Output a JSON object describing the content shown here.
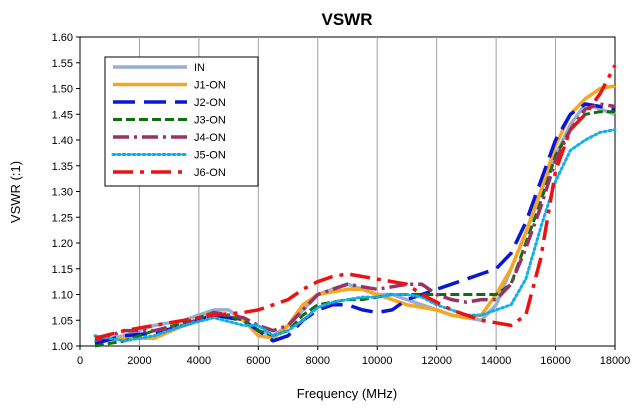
{
  "chart_data": {
    "type": "line",
    "title": "VSWR",
    "xlabel": "Frequency (MHz)",
    "ylabel": "VSWR (:1)",
    "xlim": [
      0,
      18000
    ],
    "ylim": [
      1.0,
      1.6
    ],
    "x_ticks": [
      0,
      2000,
      4000,
      6000,
      8000,
      10000,
      12000,
      14000,
      16000,
      18000
    ],
    "x_tick_labels": [
      "0",
      "2000",
      "4000",
      "6000",
      "8000",
      "10000",
      "12000",
      "14000",
      "16000",
      "18000"
    ],
    "y_ticks": [
      1.0,
      1.05,
      1.1,
      1.15,
      1.2,
      1.25,
      1.3,
      1.35,
      1.4,
      1.45,
      1.5,
      1.55,
      1.6
    ],
    "y_tick_labels": [
      "1.00",
      "1.05",
      "1.10",
      "1.15",
      "1.20",
      "1.25",
      "1.30",
      "1.35",
      "1.40",
      "1.45",
      "1.50",
      "1.55",
      "1.60"
    ],
    "grid": "vertical",
    "legend_position": "top-left",
    "series": [
      {
        "name": "IN",
        "color": "#9aaed0",
        "dash": "solid",
        "x": [
          500,
          1500,
          2500,
          3500,
          4500,
          5000,
          5500,
          6000,
          6500,
          7000,
          7500,
          8000,
          8500,
          9000,
          9500,
          10000,
          10500,
          11000,
          11500,
          12000,
          12500,
          13000,
          13500,
          14000,
          14500,
          15000,
          15500,
          16000,
          16500,
          17000,
          17500,
          18000
        ],
        "y": [
          1.01,
          1.02,
          1.04,
          1.05,
          1.07,
          1.07,
          1.05,
          1.03,
          1.02,
          1.04,
          1.07,
          1.1,
          1.11,
          1.12,
          1.11,
          1.1,
          1.1,
          1.09,
          1.08,
          1.07,
          1.06,
          1.055,
          1.05,
          1.08,
          1.15,
          1.22,
          1.3,
          1.37,
          1.43,
          1.47,
          1.46,
          1.45
        ]
      },
      {
        "name": "J1-ON",
        "color": "#f5a623",
        "dash": "solid",
        "x": [
          500,
          1500,
          2500,
          3500,
          4500,
          5500,
          6000,
          6500,
          7000,
          7500,
          8000,
          8500,
          9000,
          9500,
          10000,
          10500,
          11000,
          11500,
          12000,
          12500,
          13000,
          13500,
          14000,
          14500,
          15000,
          15500,
          16000,
          16500,
          17000,
          17500,
          18000
        ],
        "y": [
          1.01,
          1.015,
          1.015,
          1.04,
          1.065,
          1.05,
          1.02,
          1.015,
          1.04,
          1.08,
          1.1,
          1.105,
          1.11,
          1.11,
          1.1,
          1.09,
          1.08,
          1.075,
          1.07,
          1.06,
          1.055,
          1.06,
          1.1,
          1.15,
          1.22,
          1.3,
          1.39,
          1.45,
          1.48,
          1.5,
          1.505
        ]
      },
      {
        "name": "J2-ON",
        "color": "#0a16d6",
        "dash": "longdash",
        "x": [
          500,
          1500,
          2500,
          3500,
          4500,
          5500,
          6000,
          6500,
          7000,
          7500,
          8000,
          8500,
          9000,
          9500,
          10000,
          10500,
          11000,
          11500,
          12000,
          12500,
          13000,
          13500,
          14000,
          14500,
          15000,
          15500,
          16000,
          16500,
          17000,
          17500,
          18000
        ],
        "y": [
          1.005,
          1.02,
          1.025,
          1.04,
          1.06,
          1.05,
          1.03,
          1.01,
          1.02,
          1.05,
          1.07,
          1.08,
          1.08,
          1.07,
          1.065,
          1.07,
          1.09,
          1.1,
          1.11,
          1.12,
          1.13,
          1.14,
          1.15,
          1.18,
          1.24,
          1.32,
          1.4,
          1.45,
          1.47,
          1.465,
          1.46
        ]
      },
      {
        "name": "J3-ON",
        "color": "#0f6e0f",
        "dash": "dash",
        "x": [
          500,
          1500,
          2500,
          3500,
          4500,
          5500,
          6000,
          6500,
          7000,
          7500,
          8000,
          8500,
          9000,
          9500,
          10000,
          10500,
          11000,
          11500,
          12000,
          12500,
          13000,
          13500,
          14000,
          14500,
          15000,
          15500,
          16000,
          16500,
          17000,
          17500,
          18000
        ],
        "y": [
          1.0,
          1.01,
          1.03,
          1.045,
          1.065,
          1.05,
          1.03,
          1.02,
          1.03,
          1.06,
          1.08,
          1.085,
          1.09,
          1.09,
          1.095,
          1.1,
          1.1,
          1.1,
          1.1,
          1.1,
          1.1,
          1.1,
          1.1,
          1.12,
          1.2,
          1.28,
          1.37,
          1.42,
          1.45,
          1.455,
          1.455
        ]
      },
      {
        "name": "J4-ON",
        "color": "#993366",
        "dash": "dashdot",
        "x": [
          500,
          1500,
          2500,
          3500,
          4500,
          5500,
          6000,
          6500,
          7000,
          7500,
          8000,
          8500,
          9000,
          9500,
          10000,
          10500,
          11000,
          11500,
          12000,
          12500,
          13000,
          13500,
          14000,
          14500,
          15000,
          15500,
          16000,
          16500,
          17000,
          17500,
          18000
        ],
        "y": [
          1.01,
          1.03,
          1.03,
          1.04,
          1.065,
          1.055,
          1.04,
          1.03,
          1.04,
          1.07,
          1.1,
          1.11,
          1.12,
          1.115,
          1.11,
          1.115,
          1.12,
          1.12,
          1.1,
          1.09,
          1.085,
          1.09,
          1.09,
          1.12,
          1.19,
          1.27,
          1.36,
          1.42,
          1.46,
          1.47,
          1.465
        ]
      },
      {
        "name": "J5-ON",
        "color": "#11aee8",
        "dash": "dot",
        "x": [
          500,
          1500,
          2500,
          3500,
          4500,
          5500,
          6000,
          6500,
          7000,
          7500,
          8000,
          8500,
          9000,
          9500,
          10000,
          10500,
          11000,
          11500,
          12000,
          12500,
          13000,
          13500,
          14000,
          14500,
          15000,
          15500,
          16000,
          16500,
          17000,
          17500,
          18000
        ],
        "y": [
          1.02,
          1.01,
          1.02,
          1.04,
          1.055,
          1.04,
          1.04,
          1.02,
          1.03,
          1.05,
          1.075,
          1.085,
          1.09,
          1.095,
          1.095,
          1.1,
          1.1,
          1.095,
          1.08,
          1.07,
          1.06,
          1.06,
          1.07,
          1.08,
          1.13,
          1.23,
          1.32,
          1.38,
          1.4,
          1.415,
          1.42
        ]
      },
      {
        "name": "J6-ON",
        "color": "#ee1111",
        "dash": "longdashdot",
        "x": [
          500,
          1500,
          2500,
          3500,
          4500,
          5500,
          6000,
          6500,
          7000,
          7500,
          8000,
          8500,
          9000,
          9500,
          10000,
          10500,
          11000,
          11500,
          12000,
          12500,
          13000,
          13500,
          14000,
          14500,
          15000,
          15500,
          16000,
          16500,
          17000,
          17500,
          18000
        ],
        "y": [
          1.015,
          1.03,
          1.04,
          1.05,
          1.06,
          1.065,
          1.07,
          1.08,
          1.09,
          1.11,
          1.125,
          1.135,
          1.14,
          1.135,
          1.13,
          1.125,
          1.12,
          1.1,
          1.085,
          1.07,
          1.06,
          1.05,
          1.045,
          1.04,
          1.06,
          1.17,
          1.34,
          1.42,
          1.45,
          1.49,
          1.545
        ]
      }
    ]
  }
}
